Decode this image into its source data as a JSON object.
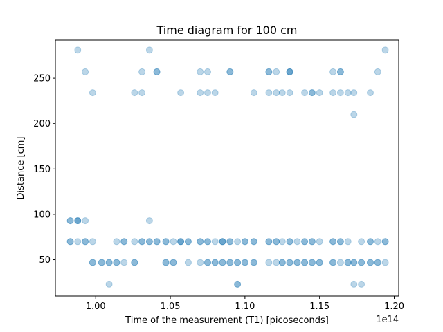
{
  "chart_data": {
    "type": "scatter",
    "title": "Time diagram for 100 cm",
    "xlabel": "Time of the measurement (T1) [picoseconds]",
    "ylabel": "Distance [cm]",
    "x_offset_label": "1e14",
    "xlim": [
      0.973,
      1.203
    ],
    "ylim": [
      10,
      292
    ],
    "x_ticks": [
      1.0,
      1.05,
      1.1,
      1.15,
      1.2
    ],
    "x_tick_labels": [
      "1.00",
      "1.05",
      "1.10",
      "1.15",
      "1.20"
    ],
    "y_ticks": [
      50,
      100,
      150,
      200,
      250
    ],
    "y_tick_labels": [
      "50",
      "100",
      "150",
      "200",
      "250"
    ],
    "grid": false,
    "marker_color": "#1f77b4",
    "marker_alpha": 0.3,
    "series": [
      {
        "points": [
          [
            0.988,
            281
          ],
          [
            1.036,
            281
          ],
          [
            1.194,
            281
          ],
          [
            0.993,
            257
          ],
          [
            1.031,
            257
          ],
          [
            1.041,
            257
          ],
          [
            1.041,
            257
          ],
          [
            1.07,
            257
          ],
          [
            1.075,
            257
          ],
          [
            1.09,
            257
          ],
          [
            1.09,
            257
          ],
          [
            1.116,
            257
          ],
          [
            1.116,
            257
          ],
          [
            1.121,
            257
          ],
          [
            1.13,
            257
          ],
          [
            1.13,
            257
          ],
          [
            1.13,
            257
          ],
          [
            1.159,
            257
          ],
          [
            1.164,
            257
          ],
          [
            1.164,
            257
          ],
          [
            1.189,
            257
          ],
          [
            0.998,
            234
          ],
          [
            1.026,
            234
          ],
          [
            1.031,
            234
          ],
          [
            1.057,
            234
          ],
          [
            1.07,
            234
          ],
          [
            1.075,
            234
          ],
          [
            1.08,
            234
          ],
          [
            1.106,
            234
          ],
          [
            1.116,
            234
          ],
          [
            1.121,
            234
          ],
          [
            1.125,
            234
          ],
          [
            1.13,
            234
          ],
          [
            1.14,
            234
          ],
          [
            1.145,
            234
          ],
          [
            1.145,
            234
          ],
          [
            1.15,
            234
          ],
          [
            1.159,
            234
          ],
          [
            1.164,
            234
          ],
          [
            1.169,
            234
          ],
          [
            1.173,
            234
          ],
          [
            1.184,
            234
          ],
          [
            1.173,
            210
          ],
          [
            0.983,
            93
          ],
          [
            0.983,
            93
          ],
          [
            0.988,
            93
          ],
          [
            0.988,
            93
          ],
          [
            0.988,
            93
          ],
          [
            0.993,
            93
          ],
          [
            1.036,
            93
          ],
          [
            0.983,
            70
          ],
          [
            0.983,
            70
          ],
          [
            0.988,
            70
          ],
          [
            0.993,
            70
          ],
          [
            0.993,
            70
          ],
          [
            0.998,
            70
          ],
          [
            1.014,
            70
          ],
          [
            1.019,
            70
          ],
          [
            1.019,
            70
          ],
          [
            1.026,
            70
          ],
          [
            1.031,
            70
          ],
          [
            1.031,
            70
          ],
          [
            1.036,
            70
          ],
          [
            1.036,
            70
          ],
          [
            1.041,
            70
          ],
          [
            1.041,
            70
          ],
          [
            1.047,
            70
          ],
          [
            1.047,
            70
          ],
          [
            1.052,
            70
          ],
          [
            1.057,
            70
          ],
          [
            1.057,
            70
          ],
          [
            1.057,
            70
          ],
          [
            1.062,
            70
          ],
          [
            1.062,
            70
          ],
          [
            1.07,
            70
          ],
          [
            1.07,
            70
          ],
          [
            1.075,
            70
          ],
          [
            1.075,
            70
          ],
          [
            1.08,
            70
          ],
          [
            1.085,
            70
          ],
          [
            1.085,
            70
          ],
          [
            1.085,
            70
          ],
          [
            1.09,
            70
          ],
          [
            1.09,
            70
          ],
          [
            1.095,
            70
          ],
          [
            1.1,
            70
          ],
          [
            1.1,
            70
          ],
          [
            1.106,
            70
          ],
          [
            1.106,
            70
          ],
          [
            1.116,
            70
          ],
          [
            1.116,
            70
          ],
          [
            1.121,
            70
          ],
          [
            1.121,
            70
          ],
          [
            1.125,
            70
          ],
          [
            1.13,
            70
          ],
          [
            1.13,
            70
          ],
          [
            1.135,
            70
          ],
          [
            1.14,
            70
          ],
          [
            1.14,
            70
          ],
          [
            1.145,
            70
          ],
          [
            1.145,
            70
          ],
          [
            1.15,
            70
          ],
          [
            1.159,
            70
          ],
          [
            1.159,
            70
          ],
          [
            1.164,
            70
          ],
          [
            1.164,
            70
          ],
          [
            1.169,
            70
          ],
          [
            1.178,
            70
          ],
          [
            1.184,
            70
          ],
          [
            1.184,
            70
          ],
          [
            1.189,
            70
          ],
          [
            1.194,
            70
          ],
          [
            1.194,
            70
          ],
          [
            0.998,
            47
          ],
          [
            0.998,
            47
          ],
          [
            1.004,
            47
          ],
          [
            1.004,
            47
          ],
          [
            1.009,
            47
          ],
          [
            1.009,
            47
          ],
          [
            1.014,
            47
          ],
          [
            1.014,
            47
          ],
          [
            1.019,
            47
          ],
          [
            1.026,
            47
          ],
          [
            1.026,
            47
          ],
          [
            1.047,
            47
          ],
          [
            1.047,
            47
          ],
          [
            1.052,
            47
          ],
          [
            1.052,
            47
          ],
          [
            1.062,
            47
          ],
          [
            1.07,
            47
          ],
          [
            1.075,
            47
          ],
          [
            1.075,
            47
          ],
          [
            1.08,
            47
          ],
          [
            1.08,
            47
          ],
          [
            1.085,
            47
          ],
          [
            1.085,
            47
          ],
          [
            1.09,
            47
          ],
          [
            1.09,
            47
          ],
          [
            1.095,
            47
          ],
          [
            1.095,
            47
          ],
          [
            1.1,
            47
          ],
          [
            1.1,
            47
          ],
          [
            1.106,
            47
          ],
          [
            1.106,
            47
          ],
          [
            1.116,
            47
          ],
          [
            1.121,
            47
          ],
          [
            1.125,
            47
          ],
          [
            1.125,
            47
          ],
          [
            1.13,
            47
          ],
          [
            1.13,
            47
          ],
          [
            1.135,
            47
          ],
          [
            1.135,
            47
          ],
          [
            1.14,
            47
          ],
          [
            1.14,
            47
          ],
          [
            1.145,
            47
          ],
          [
            1.145,
            47
          ],
          [
            1.15,
            47
          ],
          [
            1.15,
            47
          ],
          [
            1.159,
            47
          ],
          [
            1.159,
            47
          ],
          [
            1.164,
            47
          ],
          [
            1.169,
            47
          ],
          [
            1.169,
            47
          ],
          [
            1.173,
            47
          ],
          [
            1.173,
            47
          ],
          [
            1.178,
            47
          ],
          [
            1.178,
            47
          ],
          [
            1.184,
            47
          ],
          [
            1.184,
            47
          ],
          [
            1.189,
            47
          ],
          [
            1.189,
            47
          ],
          [
            1.194,
            47
          ],
          [
            1.009,
            23
          ],
          [
            1.095,
            23
          ],
          [
            1.095,
            23
          ],
          [
            1.173,
            23
          ],
          [
            1.178,
            23
          ]
        ]
      }
    ]
  }
}
